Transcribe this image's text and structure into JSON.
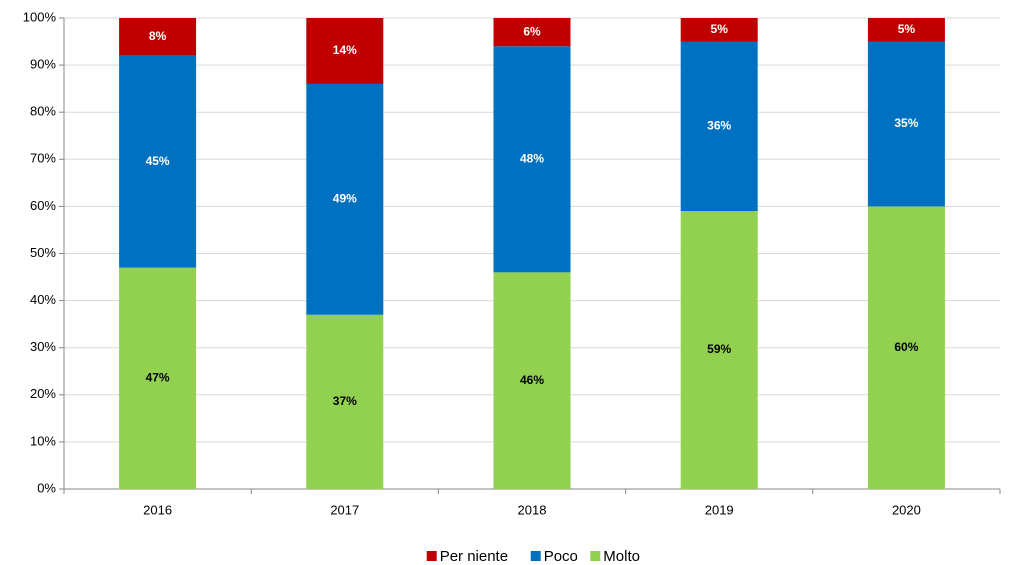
{
  "chart_data": {
    "type": "stacked_bar",
    "categories": [
      "2016",
      "2017",
      "2018",
      "2019",
      "2020"
    ],
    "series": [
      {
        "name": "Per niente",
        "color": "#c00000",
        "label_color": "#ffffff",
        "values": [
          8,
          14,
          6,
          5,
          5
        ],
        "value_labels": [
          "8%",
          "14%",
          "6%",
          "5%",
          "5%"
        ]
      },
      {
        "name": "Poco",
        "color": "#0070c0",
        "label_color": "#ffffff",
        "values": [
          45,
          49,
          48,
          36,
          35
        ],
        "value_labels": [
          "45%",
          "49%",
          "48%",
          "36%",
          "35%"
        ]
      },
      {
        "name": "Molto",
        "color": "#92d050",
        "label_color": "#000000",
        "values": [
          47,
          37,
          46,
          59,
          60
        ],
        "value_labels": [
          "47%",
          "37%",
          "46%",
          "59%",
          "60%"
        ]
      }
    ],
    "ylim": [
      0,
      100
    ],
    "yticks": [
      {
        "value": 0,
        "label": "0%"
      },
      {
        "value": 10,
        "label": "10%"
      },
      {
        "value": 20,
        "label": "20%"
      },
      {
        "value": 30,
        "label": "30%"
      },
      {
        "value": 40,
        "label": "40%"
      },
      {
        "value": 50,
        "label": "50%"
      },
      {
        "value": 60,
        "label": "60%"
      },
      {
        "value": 70,
        "label": "70%"
      },
      {
        "value": 80,
        "label": "80%"
      },
      {
        "value": 90,
        "label": "90%"
      },
      {
        "value": 100,
        "label": "100%"
      }
    ],
    "grid": true,
    "legend": "bottom"
  }
}
